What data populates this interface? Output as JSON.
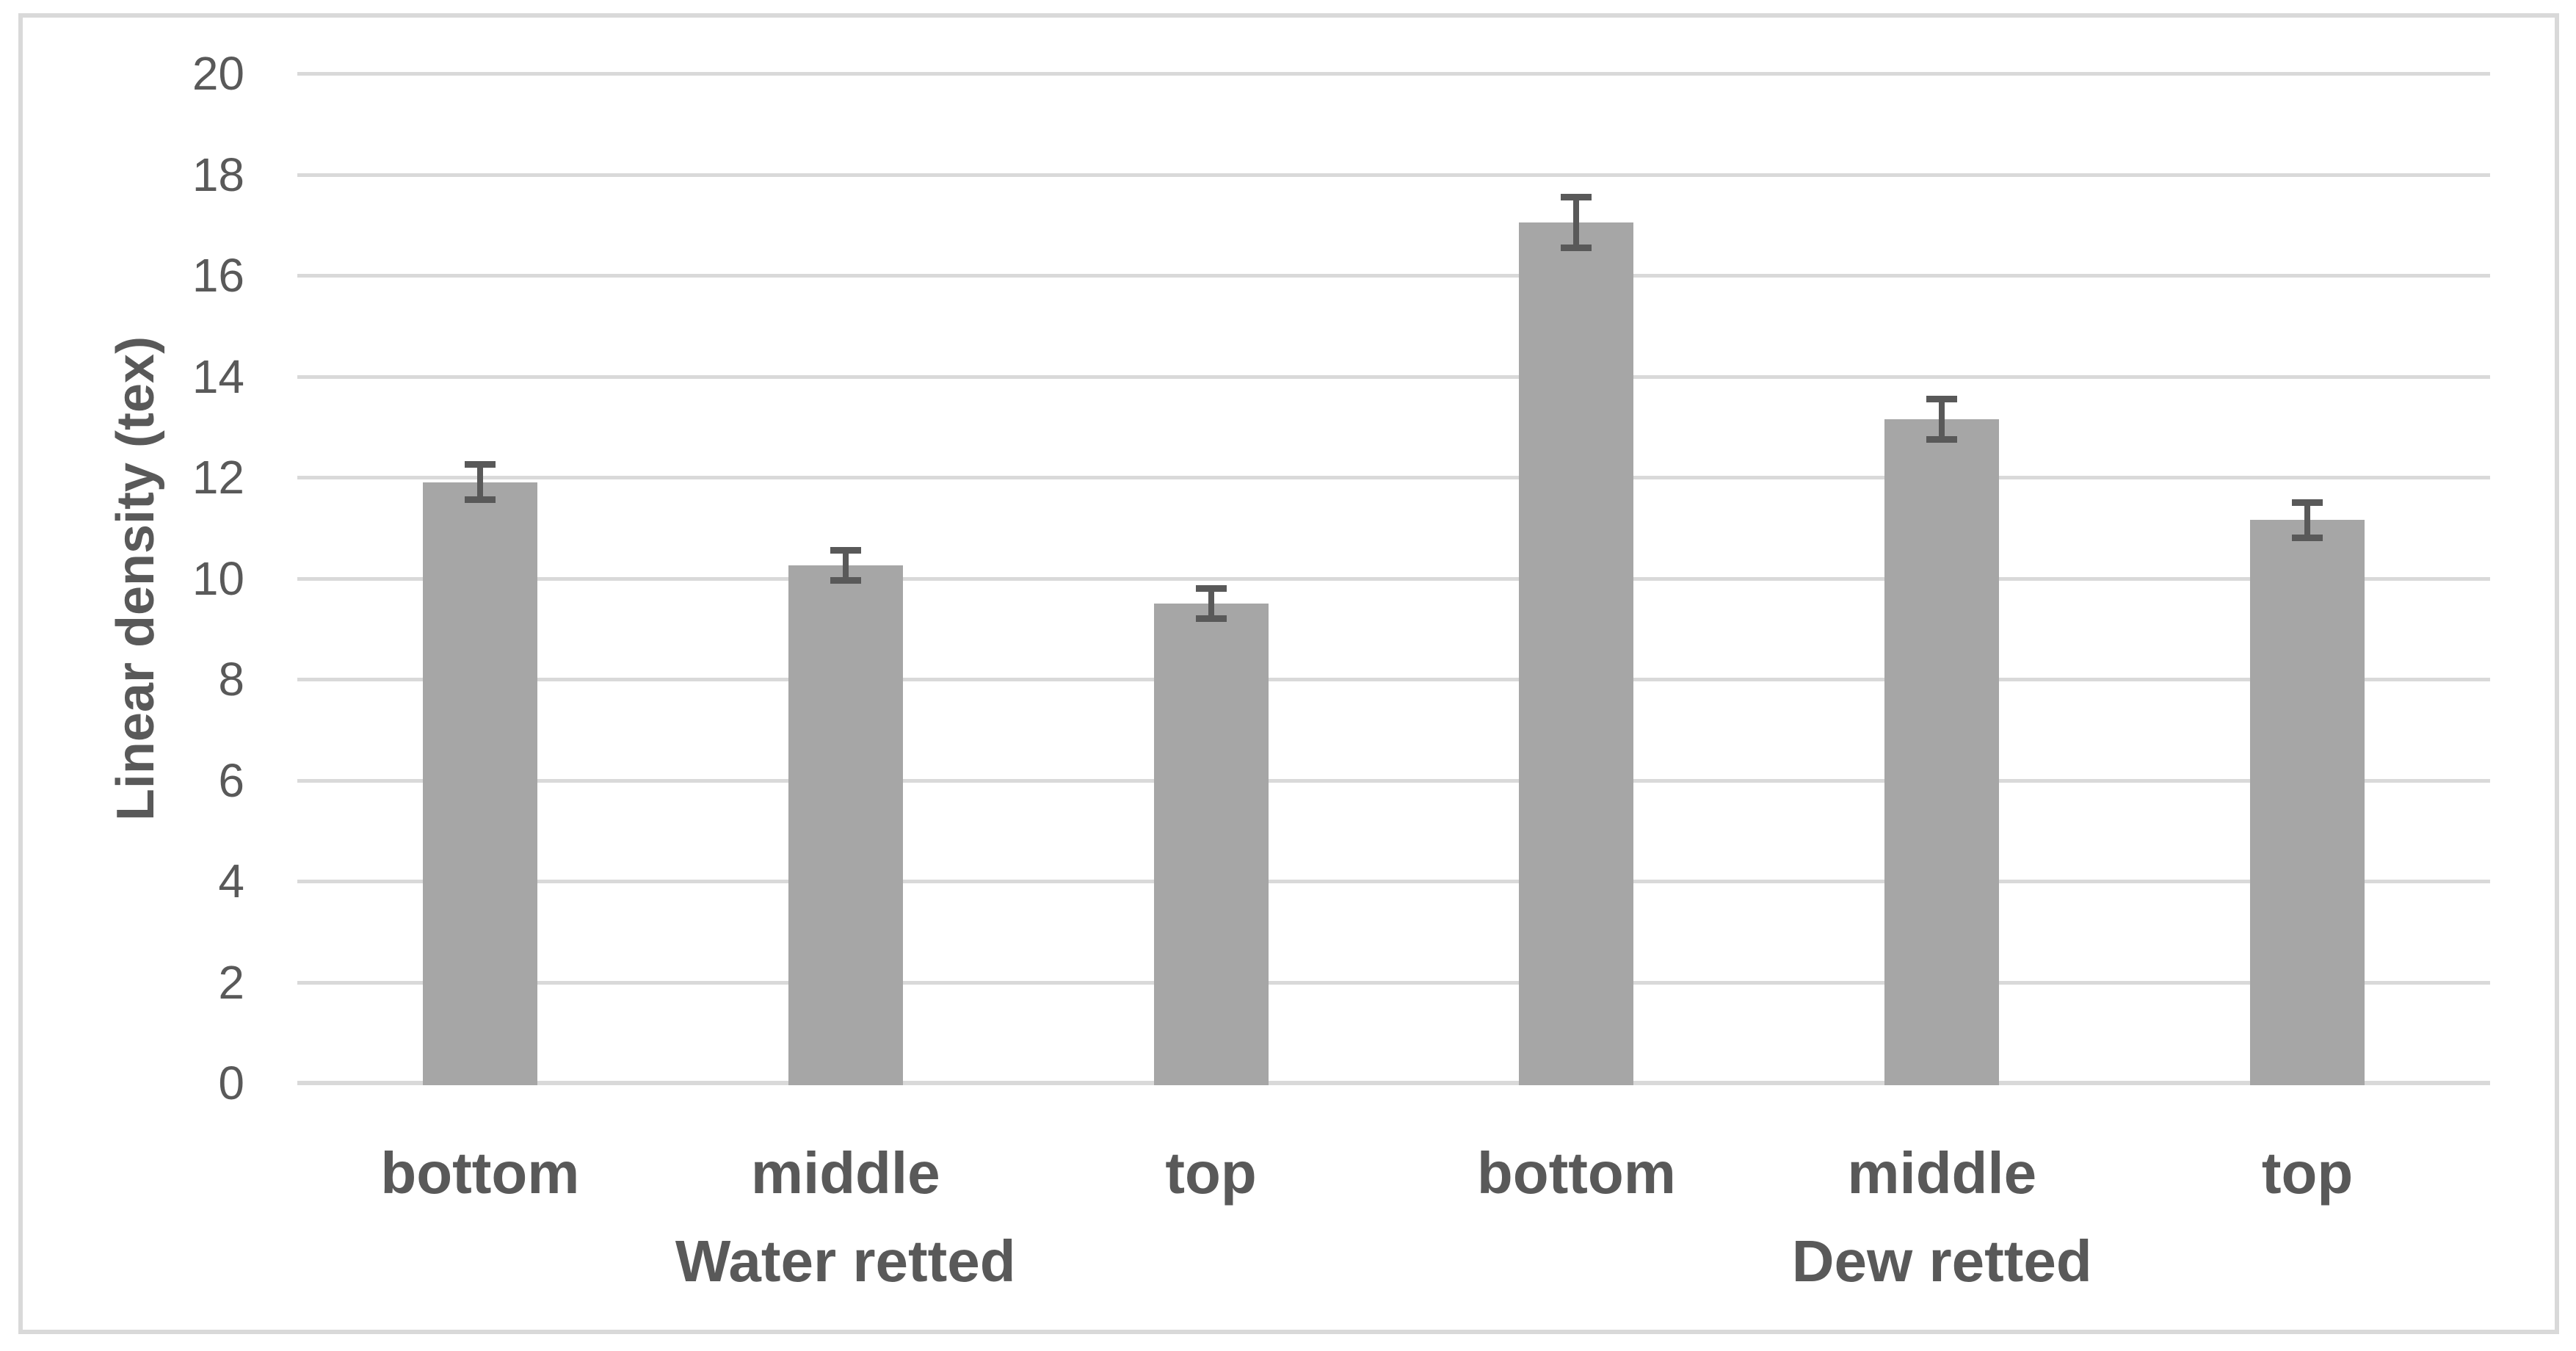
{
  "chart_data": {
    "type": "bar",
    "title": "",
    "xlabel": "",
    "ylabel": "Linear density (tex)",
    "ylim": [
      0,
      20
    ],
    "ytick_step": 2,
    "ytick_labels": [
      "0",
      "2",
      "4",
      "6",
      "8",
      "10",
      "12",
      "14",
      "16",
      "18",
      "20"
    ],
    "grid": true,
    "legend": "none",
    "groups": [
      {
        "label": "Water retted",
        "categories": [
          "bottom",
          "middle",
          "top"
        ],
        "values": [
          11.9,
          10.25,
          9.5
        ],
        "errors": [
          0.35,
          0.3,
          0.3
        ]
      },
      {
        "label": "Dew retted",
        "categories": [
          "bottom",
          "middle",
          "top"
        ],
        "values": [
          17.05,
          13.15,
          11.15
        ],
        "errors": [
          0.5,
          0.4,
          0.35
        ]
      }
    ],
    "colors": {
      "bar_fill": "#a6a6a6",
      "error_bar": "#595959",
      "gridline": "#d9d9d9",
      "axis_line": "#d9d9d9",
      "text": "#595959",
      "chart_border": "#d9d9d9",
      "background": "#ffffff"
    }
  }
}
